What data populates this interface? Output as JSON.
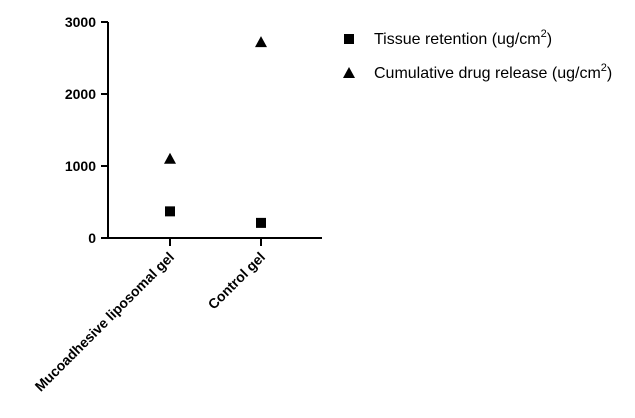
{
  "chart_data": {
    "type": "scatter",
    "categories": [
      "Mucoadhesive liposomal gel",
      "Control gel"
    ],
    "series": [
      {
        "name": "Tissue retention (ug/cm",
        "name_sup": "2",
        "name_tail": ")",
        "marker": "square",
        "values": [
          370,
          210
        ]
      },
      {
        "name": "Cumulative drug release (ug/cm",
        "name_sup": "2",
        "name_tail": ")",
        "marker": "triangle",
        "values": [
          1100,
          2720
        ]
      }
    ],
    "y_ticks": [
      "0",
      "1000",
      "2000",
      "3000"
    ],
    "ylim": [
      0,
      3000
    ],
    "legend_position": "top-right",
    "grid": false
  }
}
